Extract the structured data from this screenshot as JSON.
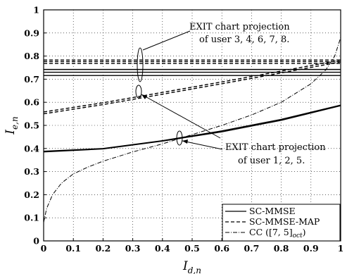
{
  "chart_data": {
    "type": "line",
    "xlabel": {
      "main": "I",
      "sub": "d,n"
    },
    "ylabel": {
      "main": "I",
      "sub": "e,n"
    },
    "xlim": [
      0,
      1
    ],
    "ylim": [
      0,
      1
    ],
    "xticks": [
      "0",
      "0.1",
      "0.2",
      "0.3",
      "0.4",
      "0.5",
      "0.6",
      "0.7",
      "0.8",
      "0.9",
      "1"
    ],
    "yticks": [
      "0",
      "0.1",
      "0.2",
      "0.3",
      "0.4",
      "0.5",
      "0.6",
      "0.7",
      "0.8",
      "0.9",
      "1"
    ],
    "grid": true,
    "legend": {
      "position": "bottom-right",
      "entries": [
        {
          "label": "SC-MMSE",
          "style": "solid"
        },
        {
          "label": "SC-MMSE-MAP",
          "style": "dashed"
        },
        {
          "label": "CC ([7, 5]",
          "sub": "oct",
          "tail": ")",
          "style": "dashdot"
        }
      ]
    },
    "annotations": [
      {
        "lines": [
          "EXIT chart projection",
          "of user 3, 4, 6, 7, 8."
        ]
      },
      {
        "lines": [
          "EXIT chart projection",
          "of user 1, 2, 5."
        ]
      }
    ],
    "series": [
      {
        "style": "solid",
        "x": [
          0,
          1
        ],
        "y": [
          0.716,
          0.716
        ]
      },
      {
        "style": "solid",
        "x": [
          0,
          1
        ],
        "y": [
          0.73,
          0.73
        ]
      },
      {
        "style": "solid",
        "x": [
          0,
          1
        ],
        "y": [
          0.742,
          0.742
        ]
      },
      {
        "style": "dashed",
        "x": [
          0,
          1
        ],
        "y": [
          0.768,
          0.768
        ]
      },
      {
        "style": "dashed",
        "x": [
          0,
          1
        ],
        "y": [
          0.776,
          0.776
        ]
      },
      {
        "style": "dashed",
        "x": [
          0,
          1
        ],
        "y": [
          0.783,
          0.783
        ]
      },
      {
        "style": "solid",
        "x": [
          0,
          0.2,
          0.4,
          0.6,
          0.8,
          1
        ],
        "y": [
          0.385,
          0.398,
          0.432,
          0.472,
          0.522,
          0.585
        ]
      },
      {
        "style": "solid",
        "x": [
          0,
          0.2,
          0.4,
          0.6,
          0.8,
          1
        ],
        "y": [
          0.388,
          0.4,
          0.434,
          0.476,
          0.526,
          0.588
        ]
      },
      {
        "style": "dashed",
        "x": [
          0,
          0.2,
          0.4,
          0.6,
          0.8,
          1
        ],
        "y": [
          0.55,
          0.59,
          0.635,
          0.68,
          0.727,
          0.775
        ]
      },
      {
        "style": "dashed",
        "x": [
          0,
          0.2,
          0.4,
          0.6,
          0.8,
          1
        ],
        "y": [
          0.558,
          0.598,
          0.643,
          0.688,
          0.735,
          0.783
        ]
      },
      {
        "style": "dashdot",
        "x": [
          0,
          0.01,
          0.03,
          0.06,
          0.1,
          0.15,
          0.2,
          0.3,
          0.4,
          0.5,
          0.6,
          0.7,
          0.8,
          0.9,
          0.95,
          0.98,
          1
        ],
        "y": [
          0.08,
          0.14,
          0.2,
          0.25,
          0.29,
          0.32,
          0.345,
          0.385,
          0.42,
          0.46,
          0.5,
          0.545,
          0.6,
          0.68,
          0.74,
          0.8,
          0.88
        ]
      }
    ]
  }
}
